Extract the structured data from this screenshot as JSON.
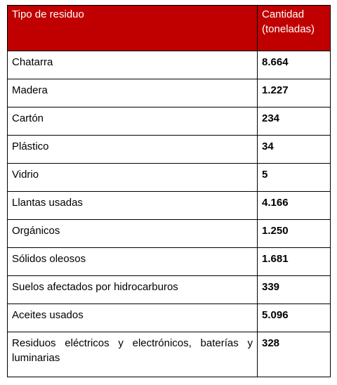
{
  "table": {
    "headers": {
      "type": "Tipo de residuo",
      "quantity": "Cantidad (toneladas)"
    },
    "rows": [
      {
        "type": "Chatarra",
        "quantity": "8.664"
      },
      {
        "type": "Madera",
        "quantity": "1.227"
      },
      {
        "type": "Cartón",
        "quantity": "234"
      },
      {
        "type": "Plástico",
        "quantity": "34"
      },
      {
        "type": "Vidrio",
        "quantity": "5"
      },
      {
        "type": "Llantas usadas",
        "quantity": "4.166"
      },
      {
        "type": "Orgánicos",
        "quantity": "1.250"
      },
      {
        "type": "Sólidos oleosos",
        "quantity": "1.681"
      },
      {
        "type": "Suelos afectados por hidrocarburos",
        "quantity": "339"
      },
      {
        "type": "Aceites usados",
        "quantity": "5.096"
      },
      {
        "type": "Residuos eléctricos y electrónicos, baterías y luminarias",
        "quantity": "328"
      }
    ]
  },
  "colors": {
    "header_background": "#c00000",
    "header_text": "#ffffff",
    "border": "#000000"
  }
}
